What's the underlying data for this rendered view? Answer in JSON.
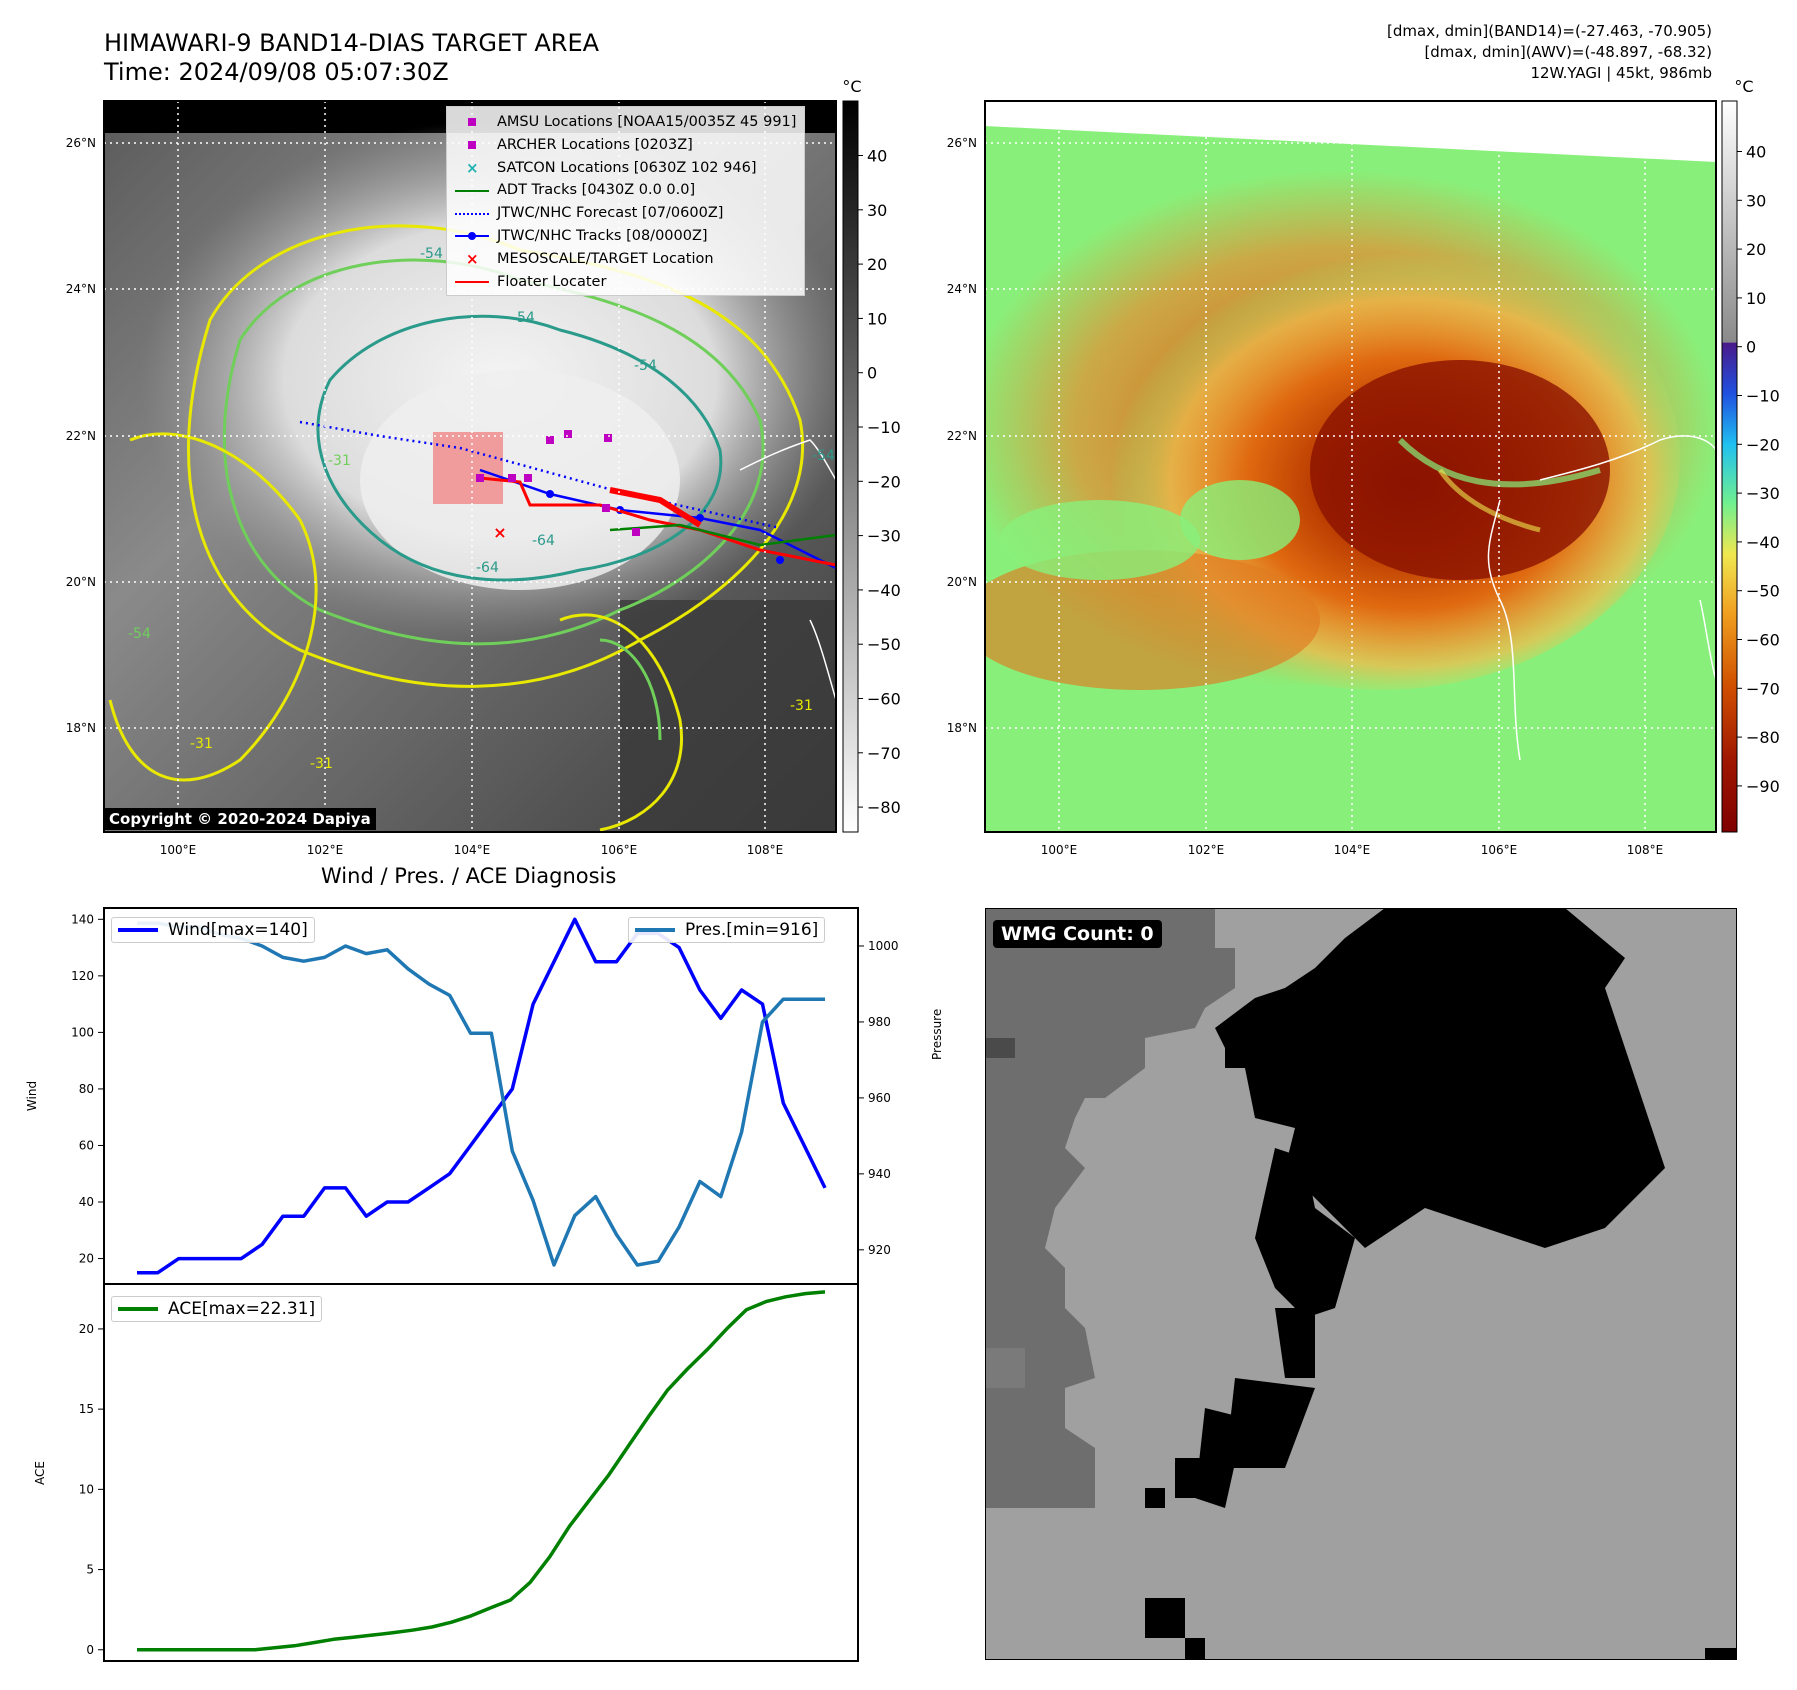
{
  "header": {
    "title_line1": "HIMAWARI-9 BAND14-DIAS TARGET AREA",
    "title_line2": "Time: 2024/09/08 05:07:30Z",
    "info_line1": "[dmax, dmin](BAND14)=(-27.463, -70.905)",
    "info_line2": "[dmax, dmin](AWV)=(-48.897, -68.32)",
    "info_line3": "12W.YAGI | 45kt, 986mb"
  },
  "map_left": {
    "unit": "°C",
    "colorbar_ticks": [
      "40",
      "30",
      "20",
      "10",
      "0",
      "−10",
      "−20",
      "−30",
      "−40",
      "−50",
      "−60",
      "−70",
      "−80"
    ],
    "lat_ticks": [
      "26°N",
      "24°N",
      "22°N",
      "20°N",
      "18°N"
    ],
    "lon_ticks": [
      "100°E",
      "102°E",
      "104°E",
      "106°E",
      "108°E"
    ],
    "contour_labels": [
      "-54",
      "-54",
      "-54",
      "-64",
      "-64",
      "-54",
      "-31",
      "-31",
      "-31",
      "-31",
      "-54"
    ],
    "copyright": "Copyright © 2020-2024 Dapiya",
    "legend": [
      {
        "label": "AMSU Locations [NOAA15/0035Z 45 991]",
        "color": "#c000c0",
        "kind": "square"
      },
      {
        "label": "ARCHER Locations [0203Z]",
        "color": "#c000c0",
        "kind": "square"
      },
      {
        "label": "SATCON Locations [0630Z 102 946]",
        "color": "#20b2b2",
        "kind": "x"
      },
      {
        "label": "ADT Tracks [0430Z 0.0 0.0]",
        "color": "#008000",
        "kind": "line"
      },
      {
        "label": "JTWC/NHC Forecast [07/0600Z]",
        "color": "#0000ff",
        "kind": "dotted"
      },
      {
        "label": "JTWC/NHC Tracks [08/0000Z]",
        "color": "#0000ff",
        "kind": "line-dot"
      },
      {
        "label": "MESOSCALE/TARGET Location",
        "color": "#ff0000",
        "kind": "x"
      },
      {
        "label": "Floater Locater",
        "color": "#ff0000",
        "kind": "line"
      }
    ]
  },
  "map_right": {
    "unit": "°C",
    "colorbar_ticks": [
      "40",
      "30",
      "20",
      "10",
      "0",
      "−10",
      "−20",
      "−30",
      "−40",
      "−50",
      "−60",
      "−70",
      "−80",
      "−90"
    ],
    "lat_ticks": [
      "26°N",
      "24°N",
      "22°N",
      "20°N",
      "18°N"
    ],
    "lon_ticks": [
      "100°E",
      "102°E",
      "104°E",
      "106°E",
      "108°E"
    ]
  },
  "diagnosis": {
    "title": "Wind / Pres. / ACE Diagnosis"
  },
  "wmg": {
    "label": "WMG Count: 0"
  },
  "chart_data": [
    {
      "type": "line",
      "title": "Wind / Pres. / ACE Diagnosis",
      "ylabel": "Wind",
      "y2label": "Pressure",
      "ylim": [
        11,
        144
      ],
      "y2lim": [
        911,
        1010
      ],
      "yticks": [
        "20",
        "40",
        "60",
        "80",
        "100",
        "120",
        "140"
      ],
      "y2ticks": [
        "920",
        "940",
        "960",
        "980",
        "1000"
      ],
      "series": [
        {
          "name": "Wind[max=140]",
          "color": "#0000ff",
          "axis": "left",
          "values": [
            15,
            15,
            20,
            20,
            20,
            20,
            25,
            35,
            35,
            45,
            45,
            35,
            40,
            40,
            45,
            50,
            60,
            70,
            80,
            110,
            125,
            140,
            125,
            125,
            135,
            135,
            130,
            115,
            105,
            115,
            110,
            75,
            60,
            45
          ]
        },
        {
          "name": "Pres.[min=916]",
          "color": "#1f77b4",
          "axis": "right",
          "values": [
            1006,
            1006,
            1005,
            1005,
            1003,
            1002,
            1000,
            997,
            996,
            997,
            1000,
            998,
            999,
            994,
            990,
            987,
            977,
            977,
            946,
            933,
            916,
            929,
            934,
            924,
            916,
            917,
            926,
            938,
            934,
            951,
            980,
            986,
            986,
            986
          ]
        }
      ]
    },
    {
      "type": "line",
      "ylabel": "ACE",
      "ylim": [
        -0.7,
        22.8
      ],
      "yticks": [
        "0",
        "5",
        "10",
        "15",
        "20"
      ],
      "series": [
        {
          "name": "ACE[max=22.31]",
          "color": "#008000",
          "values": [
            0,
            0,
            0,
            0,
            0,
            0,
            0,
            0.12,
            0.25,
            0.45,
            0.65,
            0.78,
            0.92,
            1.06,
            1.22,
            1.42,
            1.72,
            2.12,
            2.62,
            3.1,
            4.2,
            5.8,
            7.7,
            9.3,
            10.9,
            12.7,
            14.5,
            16.2,
            17.5,
            18.7,
            20.0,
            21.2,
            21.7,
            22.0,
            22.2,
            22.31
          ]
        }
      ]
    }
  ]
}
